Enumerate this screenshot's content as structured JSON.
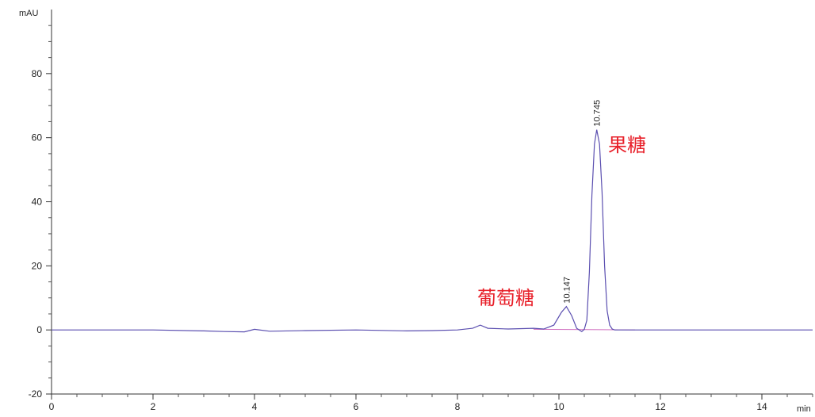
{
  "chart_data": {
    "type": "line",
    "y_unit": "mAU",
    "x_unit": "min",
    "xlim": [
      0,
      15
    ],
    "ylim": [
      -20,
      100
    ],
    "x_ticks": [
      0,
      2,
      4,
      6,
      8,
      10,
      12,
      14
    ],
    "y_ticks": [
      -20,
      0,
      20,
      40,
      60,
      80
    ],
    "grid": false,
    "series": [
      {
        "color": "#5b4fb0",
        "x": [
          0,
          1,
          2,
          3,
          3.4,
          3.8,
          4.0,
          4.3,
          5.0,
          6.0,
          7.0,
          7.5,
          8.0,
          8.3,
          8.45,
          8.6,
          9.0,
          9.5,
          9.7,
          9.9,
          10.05,
          10.147,
          10.25,
          10.35,
          10.45,
          10.5,
          10.55,
          10.6,
          10.65,
          10.7,
          10.745,
          10.8,
          10.85,
          10.9,
          10.95,
          11.0,
          11.05,
          11.1,
          11.2,
          11.5,
          12.0,
          13.0,
          14.0,
          15.0
        ],
        "y": [
          0,
          0,
          0,
          -0.3,
          -0.5,
          -0.6,
          0.2,
          -0.4,
          -0.2,
          0,
          -0.3,
          -0.2,
          0,
          0.5,
          1.5,
          0.5,
          0.3,
          0.5,
          0.3,
          1.5,
          5.5,
          7.3,
          4.5,
          0.5,
          -0.5,
          0.2,
          3,
          18,
          42,
          58,
          62.5,
          58,
          43,
          20,
          6,
          1.5,
          0.3,
          0,
          0,
          0,
          0,
          0,
          0,
          0
        ]
      }
    ],
    "peak_labels": [
      {
        "x": 10.147,
        "y": 7.3,
        "label": "10.147"
      },
      {
        "x": 10.745,
        "y": 62.5,
        "label": "10.745"
      }
    ],
    "annotations": [
      {
        "text": "葡萄糖",
        "color": "#e8202a"
      },
      {
        "text": "果糖",
        "color": "#e8202a"
      }
    ]
  }
}
